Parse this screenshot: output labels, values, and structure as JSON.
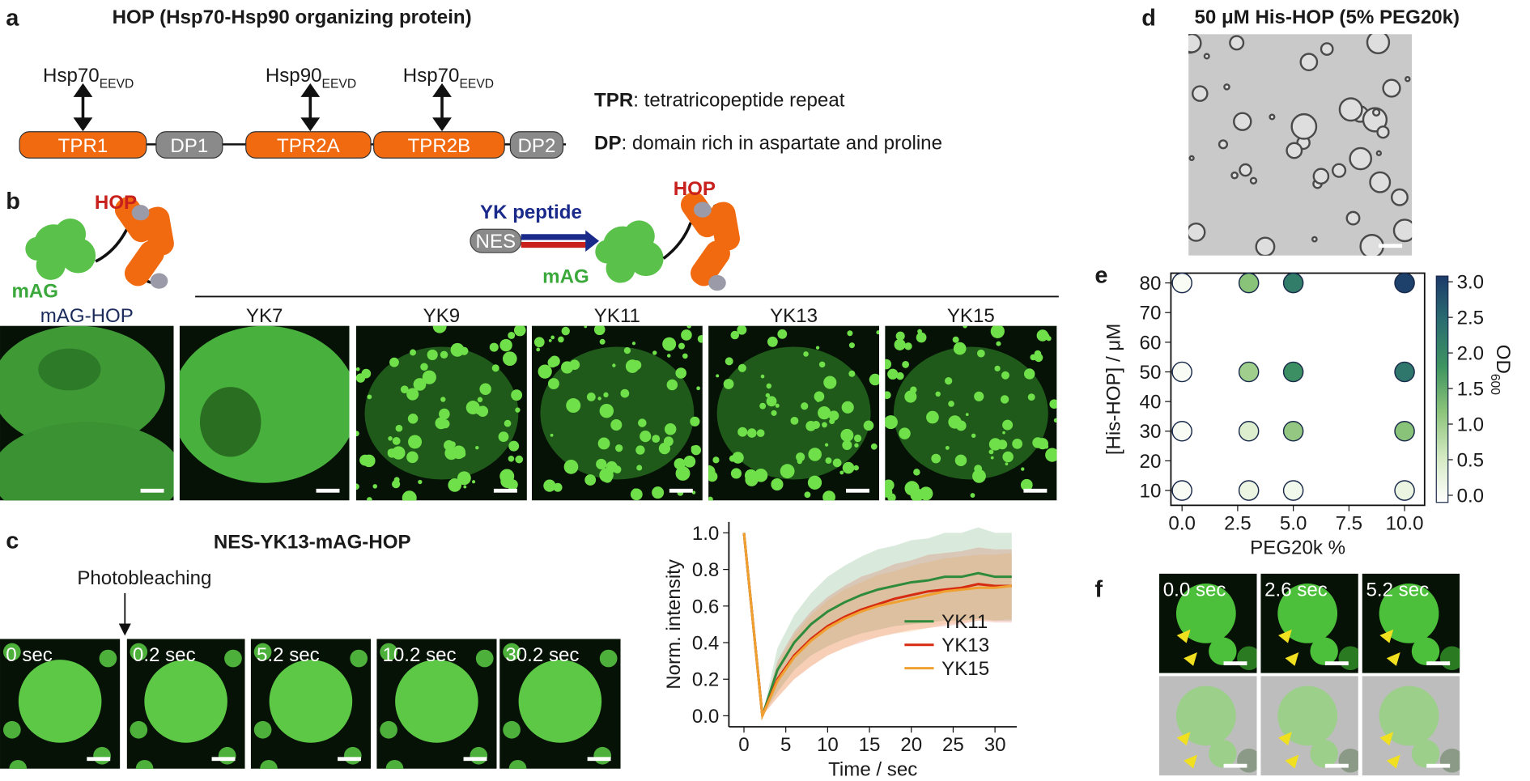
{
  "figure": {
    "a": {
      "letter": "a",
      "title": "HOP (Hsp70-Hsp90 organizing protein)",
      "domains": [
        "TPR1",
        "DP1",
        "TPR2A",
        "TPR2B",
        "DP2"
      ],
      "binders": [
        {
          "name": "Hsp70",
          "sub": "EEVD"
        },
        {
          "name": "Hsp90",
          "sub": "EEVD"
        },
        {
          "name": "Hsp70",
          "sub": "EEVD"
        }
      ],
      "legend": [
        {
          "term": "TPR",
          "definition": ": tetratricopeptide repeat"
        },
        {
          "term": "DP",
          "definition": ": domain rich in aspartate and proline"
        }
      ]
    },
    "b": {
      "letter": "b",
      "left_schematic": {
        "hop": "HOP",
        "mag": "mAG"
      },
      "right_schematic": {
        "peptide": "YK peptide",
        "nes": "NES",
        "hop": "HOP",
        "mag": "mAG"
      },
      "panels": [
        "mAG-HOP",
        "YK7",
        "YK9",
        "YK11",
        "YK13",
        "YK15"
      ]
    },
    "c": {
      "letter": "c",
      "title": "NES-YK13-mAG-HOP",
      "annotation": "Photobleaching",
      "frames": [
        "0 sec",
        "0.2 sec",
        "5.2 sec",
        "10.2 sec",
        "30.2 sec"
      ]
    },
    "d": {
      "letter": "d",
      "title": "50 μM His-HOP (5% PEG20k)"
    },
    "e": {
      "letter": "e"
    },
    "f": {
      "letter": "f",
      "frames": [
        "0.0 sec",
        "2.6 sec",
        "5.2 sec"
      ]
    }
  },
  "chart_data": [
    {
      "type": "line",
      "x_label": "Time / sec",
      "y_label": "Norm. intensity",
      "x": [
        0,
        2.2,
        4,
        6,
        8,
        10,
        12,
        14,
        16,
        18,
        20,
        22,
        24,
        26,
        28,
        30,
        32
      ],
      "series": [
        {
          "name": "YK11",
          "color": "#2e8b3c",
          "values": [
            1,
            0,
            0.25,
            0.4,
            0.5,
            0.57,
            0.62,
            0.66,
            0.69,
            0.71,
            0.73,
            0.74,
            0.76,
            0.76,
            0.78,
            0.76,
            0.76
          ],
          "errors": [
            0,
            0,
            0.12,
            0.15,
            0.17,
            0.19,
            0.2,
            0.21,
            0.22,
            0.22,
            0.23,
            0.23,
            0.24,
            0.24,
            0.25,
            0.24,
            0.24
          ]
        },
        {
          "name": "YK13",
          "color": "#d62b10",
          "values": [
            1,
            0,
            0.2,
            0.33,
            0.42,
            0.49,
            0.54,
            0.58,
            0.61,
            0.64,
            0.66,
            0.68,
            0.69,
            0.7,
            0.72,
            0.71,
            0.71
          ],
          "errors": [
            0,
            0,
            0.1,
            0.13,
            0.15,
            0.16,
            0.17,
            0.18,
            0.18,
            0.19,
            0.19,
            0.2,
            0.2,
            0.2,
            0.2,
            0.2,
            0.2
          ]
        },
        {
          "name": "YK15",
          "color": "#f0a030",
          "values": [
            1,
            0,
            0.19,
            0.32,
            0.41,
            0.48,
            0.53,
            0.57,
            0.6,
            0.62,
            0.64,
            0.66,
            0.68,
            0.69,
            0.7,
            0.7,
            0.71
          ],
          "errors": [
            0,
            0,
            0.09,
            0.12,
            0.14,
            0.15,
            0.16,
            0.16,
            0.17,
            0.17,
            0.18,
            0.18,
            0.18,
            0.18,
            0.18,
            0.18,
            0.18
          ]
        }
      ],
      "xlim": [
        -1.8,
        32.6
      ],
      "ylim": [
        -0.06,
        1.06
      ],
      "xticks": [
        0,
        5,
        10,
        15,
        20,
        25,
        30
      ],
      "yticks": [
        {
          "value": 0,
          "label": "0.0"
        },
        0.2,
        0.4,
        0.6,
        0.8,
        {
          "value": 1,
          "label": "1.0"
        }
      ],
      "legend": "lower right"
    },
    {
      "type": "scatter",
      "x_label": "PEG20k %",
      "y_label": "[His-HOP] / μM",
      "colorbar_label": "OD",
      "colorbar_label_subscript": "600",
      "x": [
        0,
        3,
        5,
        10,
        0,
        3,
        5,
        10,
        0,
        3,
        5,
        10,
        0,
        3,
        5,
        10
      ],
      "y": [
        80,
        80,
        80,
        80,
        50,
        50,
        50,
        50,
        30,
        30,
        30,
        30,
        10,
        10,
        10,
        10
      ],
      "values": [
        0,
        1.2,
        2.2,
        3.0,
        0,
        1.0,
        1.9,
        2.3,
        0,
        0.4,
        1.1,
        1.2,
        0,
        0.2,
        0.1,
        0.2
      ],
      "xlim": [
        -0.5,
        10.9
      ],
      "ylim": [
        5,
        83.3
      ],
      "xticks": [
        {
          "value": 0,
          "label": "0.0"
        },
        2.5,
        {
          "value": 5,
          "label": "5.0"
        },
        7.5,
        {
          "value": 10,
          "label": "10.0"
        }
      ],
      "yticks": [
        10,
        20,
        30,
        40,
        50,
        60,
        70,
        80
      ],
      "clim": [
        -0.1,
        3.08
      ],
      "cticks": [
        {
          "value": 0,
          "label": "0.0"
        },
        0.5,
        {
          "value": 1,
          "label": "1.0"
        },
        1.5,
        {
          "value": 2,
          "label": "2.0"
        },
        2.5,
        {
          "value": 3,
          "label": "3.0"
        }
      ],
      "colormap": [
        "#ffffff",
        "#d4e9c2",
        "#8cc47a",
        "#3e9460",
        "#2a6e70",
        "#1c3a6a"
      ]
    }
  ]
}
